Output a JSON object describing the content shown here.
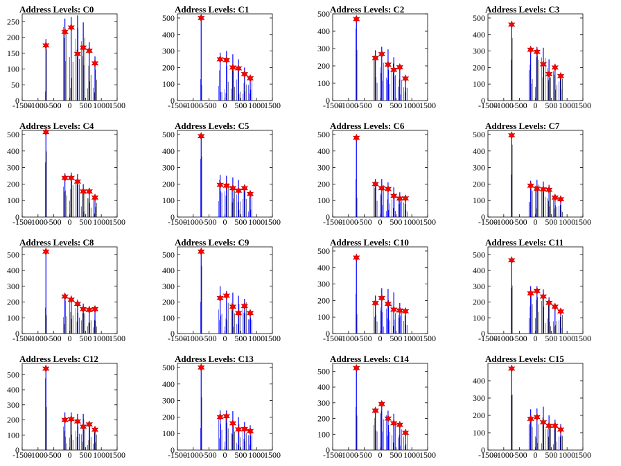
{
  "chart_data": [
    {
      "type": "bar",
      "title": "Address Levels: C0",
      "xlim": [
        -1500,
        1500
      ],
      "ylim": [
        0,
        275
      ],
      "xticks": [
        "-1500",
        "-1000",
        "-500",
        "0",
        "500",
        "1000",
        "1500"
      ],
      "yticks": [
        0,
        50,
        100,
        150,
        200,
        250
      ],
      "peaks": [
        {
          "x": -750,
          "y": 195,
          "marker": 175
        },
        {
          "x": -150,
          "y": 260,
          "marker": 218
        },
        {
          "x": 50,
          "y": 265,
          "marker": 232
        },
        {
          "x": 250,
          "y": 270,
          "marker": 148
        },
        {
          "x": 430,
          "y": 248,
          "marker": 168
        },
        {
          "x": 620,
          "y": 185,
          "marker": 158
        },
        {
          "x": 800,
          "y": 140,
          "marker": 118
        }
      ]
    },
    {
      "type": "bar",
      "title": "Address Levels: C1",
      "xlim": [
        -1500,
        1500
      ],
      "ylim": [
        0,
        525
      ],
      "xticks": [
        "-1500",
        "-1000",
        "-500",
        "0",
        "500",
        "1000",
        "1500"
      ],
      "yticks": [
        0,
        100,
        200,
        300,
        400,
        500
      ],
      "peaks": [
        {
          "x": -750,
          "y": 500,
          "marker": 500
        },
        {
          "x": -150,
          "y": 290,
          "marker": 250
        },
        {
          "x": 50,
          "y": 300,
          "marker": 245
        },
        {
          "x": 250,
          "y": 280,
          "marker": 200
        },
        {
          "x": 430,
          "y": 250,
          "marker": 195
        },
        {
          "x": 620,
          "y": 200,
          "marker": 160
        },
        {
          "x": 800,
          "y": 150,
          "marker": 135
        }
      ]
    },
    {
      "type": "bar",
      "title": "Address Levels: C2",
      "xlim": [
        -1500,
        1500
      ],
      "ylim": [
        0,
        500
      ],
      "xticks": [
        "-1500",
        "-1000",
        "-500",
        "0",
        "500",
        "1000",
        "1500"
      ],
      "yticks": [
        0,
        100,
        200,
        300,
        400,
        500
      ],
      "peaks": [
        {
          "x": -750,
          "y": 470,
          "marker": 470
        },
        {
          "x": -150,
          "y": 290,
          "marker": 245
        },
        {
          "x": 50,
          "y": 310,
          "marker": 268
        },
        {
          "x": 250,
          "y": 295,
          "marker": 207
        },
        {
          "x": 430,
          "y": 250,
          "marker": 177
        },
        {
          "x": 620,
          "y": 200,
          "marker": 192
        },
        {
          "x": 800,
          "y": 140,
          "marker": 127
        }
      ]
    },
    {
      "type": "bar",
      "title": "Address Levels: C3",
      "xlim": [
        -1500,
        1500
      ],
      "ylim": [
        0,
        525
      ],
      "xticks": [
        "-1500",
        "-1000",
        "-500",
        "0",
        "500",
        "1000",
        "1500"
      ],
      "yticks": [
        0,
        100,
        200,
        300,
        400,
        500
      ],
      "peaks": [
        {
          "x": -750,
          "y": 460,
          "marker": 460
        },
        {
          "x": -150,
          "y": 320,
          "marker": 308
        },
        {
          "x": 50,
          "y": 325,
          "marker": 295
        },
        {
          "x": 250,
          "y": 320,
          "marker": 220
        },
        {
          "x": 430,
          "y": 250,
          "marker": 160
        },
        {
          "x": 620,
          "y": 220,
          "marker": 200
        },
        {
          "x": 800,
          "y": 160,
          "marker": 148
        }
      ]
    },
    {
      "type": "bar",
      "title": "Address Levels: C4",
      "xlim": [
        -1500,
        1500
      ],
      "ylim": [
        0,
        525
      ],
      "xticks": [
        "-1500",
        "-1000",
        "-500",
        "0",
        "500",
        "1000",
        "1500"
      ],
      "yticks": [
        0,
        100,
        200,
        300,
        400,
        500
      ],
      "peaks": [
        {
          "x": -750,
          "y": 515,
          "marker": 515
        },
        {
          "x": -150,
          "y": 265,
          "marker": 237
        },
        {
          "x": 50,
          "y": 270,
          "marker": 237
        },
        {
          "x": 250,
          "y": 260,
          "marker": 215
        },
        {
          "x": 430,
          "y": 200,
          "marker": 155
        },
        {
          "x": 620,
          "y": 170,
          "marker": 155
        },
        {
          "x": 800,
          "y": 130,
          "marker": 118
        }
      ]
    },
    {
      "type": "bar",
      "title": "Address Levels: C5",
      "xlim": [
        -1500,
        1500
      ],
      "ylim": [
        0,
        525
      ],
      "xticks": [
        "-1500",
        "-1000",
        "-500",
        "0",
        "500",
        "1000",
        "1500"
      ],
      "yticks": [
        0,
        100,
        200,
        300,
        400,
        500
      ],
      "peaks": [
        {
          "x": -750,
          "y": 490,
          "marker": 490
        },
        {
          "x": -150,
          "y": 255,
          "marker": 195
        },
        {
          "x": 50,
          "y": 250,
          "marker": 190
        },
        {
          "x": 250,
          "y": 240,
          "marker": 175
        },
        {
          "x": 430,
          "y": 225,
          "marker": 160
        },
        {
          "x": 620,
          "y": 195,
          "marker": 175
        },
        {
          "x": 800,
          "y": 150,
          "marker": 140
        }
      ]
    },
    {
      "type": "bar",
      "title": "Address Levels: C6",
      "xlim": [
        -1500,
        1500
      ],
      "ylim": [
        0,
        525
      ],
      "xticks": [
        "-1500",
        "-1000",
        "-500",
        "0",
        "500",
        "1000",
        "1500"
      ],
      "yticks": [
        0,
        100,
        200,
        300,
        400,
        500
      ],
      "peaks": [
        {
          "x": -750,
          "y": 480,
          "marker": 480
        },
        {
          "x": -150,
          "y": 230,
          "marker": 200
        },
        {
          "x": 50,
          "y": 230,
          "marker": 175
        },
        {
          "x": 250,
          "y": 210,
          "marker": 170
        },
        {
          "x": 430,
          "y": 180,
          "marker": 128
        },
        {
          "x": 620,
          "y": 150,
          "marker": 112
        },
        {
          "x": 800,
          "y": 120,
          "marker": 113
        }
      ]
    },
    {
      "type": "bar",
      "title": "Address Levels: C7",
      "xlim": [
        -1500,
        1500
      ],
      "ylim": [
        0,
        525
      ],
      "xticks": [
        "-1500",
        "-1000",
        "-500",
        "0",
        "500",
        "1000",
        "1500"
      ],
      "yticks": [
        0,
        100,
        200,
        300,
        400,
        500
      ],
      "peaks": [
        {
          "x": -750,
          "y": 495,
          "marker": 495
        },
        {
          "x": -150,
          "y": 220,
          "marker": 190
        },
        {
          "x": 50,
          "y": 225,
          "marker": 172
        },
        {
          "x": 250,
          "y": 215,
          "marker": 168
        },
        {
          "x": 430,
          "y": 195,
          "marker": 165
        },
        {
          "x": 620,
          "y": 135,
          "marker": 118
        },
        {
          "x": 800,
          "y": 115,
          "marker": 108
        }
      ]
    },
    {
      "type": "bar",
      "title": "Address Levels: C8",
      "xlim": [
        -1500,
        1500
      ],
      "ylim": [
        0,
        550
      ],
      "xticks": [
        "-1500",
        "-1000",
        "-500",
        "0",
        "500",
        "1000",
        "1500"
      ],
      "yticks": [
        0,
        100,
        200,
        300,
        400,
        500
      ],
      "peaks": [
        {
          "x": -750,
          "y": 530,
          "marker": 520
        },
        {
          "x": -150,
          "y": 235,
          "marker": 235
        },
        {
          "x": 50,
          "y": 240,
          "marker": 215
        },
        {
          "x": 250,
          "y": 215,
          "marker": 188
        },
        {
          "x": 430,
          "y": 190,
          "marker": 155
        },
        {
          "x": 620,
          "y": 175,
          "marker": 150
        },
        {
          "x": 800,
          "y": 165,
          "marker": 155
        }
      ]
    },
    {
      "type": "bar",
      "title": "Address Levels: C9",
      "xlim": [
        -1500,
        1500
      ],
      "ylim": [
        0,
        550
      ],
      "xticks": [
        "-1500",
        "-1000",
        "-500",
        "0",
        "500",
        "1000",
        "1500"
      ],
      "yticks": [
        0,
        100,
        200,
        300,
        400,
        500
      ],
      "peaks": [
        {
          "x": -750,
          "y": 520,
          "marker": 520
        },
        {
          "x": -150,
          "y": 300,
          "marker": 225
        },
        {
          "x": 50,
          "y": 270,
          "marker": 240
        },
        {
          "x": 250,
          "y": 260,
          "marker": 170
        },
        {
          "x": 430,
          "y": 240,
          "marker": 130
        },
        {
          "x": 620,
          "y": 220,
          "marker": 175
        },
        {
          "x": 800,
          "y": 140,
          "marker": 130
        }
      ]
    },
    {
      "type": "bar",
      "title": "Address Levels: C10",
      "xlim": [
        -1500,
        1500
      ],
      "ylim": [
        0,
        525
      ],
      "xticks": [
        "-1500",
        "-1000",
        "-500",
        "0",
        "500",
        "1000",
        "1500"
      ],
      "yticks": [
        0,
        100,
        200,
        300,
        400,
        500
      ],
      "peaks": [
        {
          "x": -750,
          "y": 460,
          "marker": 460
        },
        {
          "x": -150,
          "y": 230,
          "marker": 185
        },
        {
          "x": 50,
          "y": 275,
          "marker": 215
        },
        {
          "x": 250,
          "y": 270,
          "marker": 180
        },
        {
          "x": 430,
          "y": 250,
          "marker": 145
        },
        {
          "x": 620,
          "y": 185,
          "marker": 140
        },
        {
          "x": 800,
          "y": 150,
          "marker": 135
        }
      ]
    },
    {
      "type": "bar",
      "title": "Address Levels: C11",
      "xlim": [
        -1500,
        1500
      ],
      "ylim": [
        0,
        550
      ],
      "xticks": [
        "-1500",
        "-1000",
        "-500",
        "0",
        "500",
        "1000",
        "1500"
      ],
      "yticks": [
        0,
        100,
        200,
        300,
        400,
        500
      ],
      "peaks": [
        {
          "x": -750,
          "y": 465,
          "marker": 465
        },
        {
          "x": -150,
          "y": 300,
          "marker": 255
        },
        {
          "x": 50,
          "y": 300,
          "marker": 270
        },
        {
          "x": 250,
          "y": 280,
          "marker": 235
        },
        {
          "x": 430,
          "y": 230,
          "marker": 195
        },
        {
          "x": 620,
          "y": 190,
          "marker": 170
        },
        {
          "x": 800,
          "y": 155,
          "marker": 140
        }
      ]
    },
    {
      "type": "bar",
      "title": "Address Levels: C12",
      "xlim": [
        -1500,
        1500
      ],
      "ylim": [
        0,
        575
      ],
      "xticks": [
        "-1500",
        "-1000",
        "-500",
        "0",
        "500",
        "1000",
        "1500"
      ],
      "yticks": [
        0,
        100,
        200,
        300,
        400,
        500
      ],
      "peaks": [
        {
          "x": -750,
          "y": 540,
          "marker": 540
        },
        {
          "x": -150,
          "y": 250,
          "marker": 200
        },
        {
          "x": 50,
          "y": 250,
          "marker": 205
        },
        {
          "x": 250,
          "y": 240,
          "marker": 190
        },
        {
          "x": 430,
          "y": 240,
          "marker": 155
        },
        {
          "x": 620,
          "y": 185,
          "marker": 170
        },
        {
          "x": 800,
          "y": 150,
          "marker": 135
        }
      ]
    },
    {
      "type": "bar",
      "title": "Address Levels: C13",
      "xlim": [
        -1500,
        1500
      ],
      "ylim": [
        0,
        525
      ],
      "xticks": [
        "-1500",
        "-1000",
        "-500",
        "0",
        "500",
        "1000",
        "1500"
      ],
      "yticks": [
        0,
        100,
        200,
        300,
        400,
        500
      ],
      "peaks": [
        {
          "x": -750,
          "y": 500,
          "marker": 500
        },
        {
          "x": -150,
          "y": 240,
          "marker": 200
        },
        {
          "x": 50,
          "y": 240,
          "marker": 205
        },
        {
          "x": 250,
          "y": 235,
          "marker": 162
        },
        {
          "x": 430,
          "y": 200,
          "marker": 125
        },
        {
          "x": 620,
          "y": 170,
          "marker": 127
        },
        {
          "x": 800,
          "y": 150,
          "marker": 115
        }
      ]
    },
    {
      "type": "bar",
      "title": "Address Levels: C14",
      "xlim": [
        -1500,
        1500
      ],
      "ylim": [
        0,
        550
      ],
      "xticks": [
        "-1500",
        "-1000",
        "-500",
        "0",
        "500",
        "1000",
        "1500"
      ],
      "yticks": [
        0,
        100,
        200,
        300,
        400,
        500
      ],
      "peaks": [
        {
          "x": -750,
          "y": 520,
          "marker": 520
        },
        {
          "x": -150,
          "y": 260,
          "marker": 250
        },
        {
          "x": 50,
          "y": 300,
          "marker": 292
        },
        {
          "x": 250,
          "y": 250,
          "marker": 200
        },
        {
          "x": 430,
          "y": 230,
          "marker": 170
        },
        {
          "x": 620,
          "y": 180,
          "marker": 160
        },
        {
          "x": 800,
          "y": 130,
          "marker": 110
        }
      ]
    },
    {
      "type": "bar",
      "title": "Address Levels: C15",
      "xlim": [
        -1500,
        1500
      ],
      "ylim": [
        0,
        500
      ],
      "xticks": [
        "-1500",
        "-1000",
        "-500",
        "0",
        "500",
        "1000",
        "1500"
      ],
      "yticks": [
        0,
        100,
        200,
        300,
        400
      ],
      "peaks": [
        {
          "x": -750,
          "y": 470,
          "marker": 470
        },
        {
          "x": -150,
          "y": 235,
          "marker": 180
        },
        {
          "x": 50,
          "y": 240,
          "marker": 190
        },
        {
          "x": 250,
          "y": 250,
          "marker": 160
        },
        {
          "x": 430,
          "y": 200,
          "marker": 140
        },
        {
          "x": 620,
          "y": 175,
          "marker": 140
        },
        {
          "x": 800,
          "y": 150,
          "marker": 118
        }
      ]
    }
  ],
  "colors": {
    "bars": "#0000ff",
    "fringe": "#000000",
    "marker": "#ff0000",
    "marker_edge": "#b00000",
    "axis": "#000000"
  },
  "marker_icon": "star-icon"
}
